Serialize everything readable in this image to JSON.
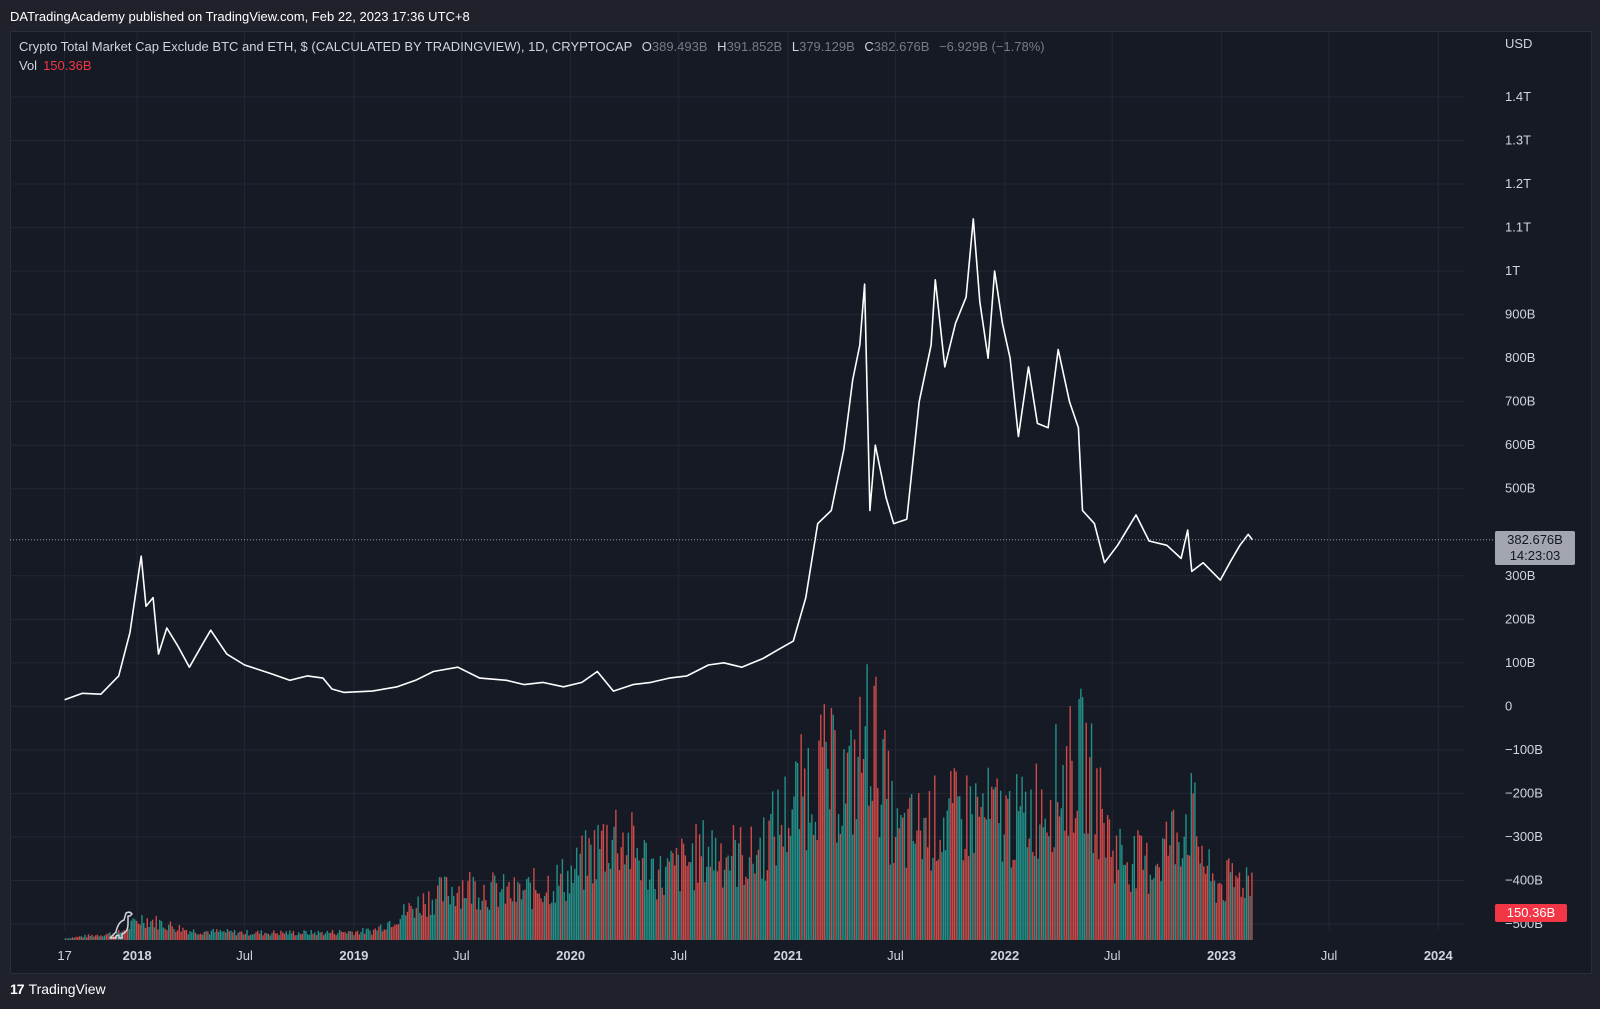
{
  "header": {
    "published": "DATradingAcademy published on TradingView.com, Feb 22, 2023 17:36 UTC+8"
  },
  "legend": {
    "title": "Crypto Total Market Cap Exclude BTC and ETH, $ (CALCULATED BY TRADINGVIEW), 1D, CRYPTOCAP",
    "open_key": "O",
    "open": "389.493B",
    "high_key": "H",
    "high": "391.852B",
    "low_key": "L",
    "low": "379.129B",
    "close_key": "C",
    "close": "382.676B",
    "change": "−6.929B (−1.78%)",
    "vol_label": "Vol",
    "vol_value": "150.36B"
  },
  "price_axis": {
    "currency": "USD"
  },
  "badges": {
    "price": "382.676B",
    "countdown": "14:23:03",
    "volume": "150.36B"
  },
  "footer": {
    "brand": "TradingView",
    "logo_mark": "17"
  },
  "colors": {
    "background": "#161a25",
    "line": "#ffffff",
    "volume_up": "#26a69a",
    "volume_down": "#ef5350",
    "price_badge": "#a3a6af",
    "vol_badge": "#f23645"
  },
  "chart_data": {
    "type": "line",
    "title": "Crypto Total Market Cap Exclude BTC and ETH, $ (CALCULATED BY TRADINGVIEW), 1D, CRYPTOCAP",
    "ylabel": "USD",
    "ylim": [
      -500,
      1400
    ],
    "y_ticks": [
      {
        "v": 1400,
        "label": "1.4T"
      },
      {
        "v": 1300,
        "label": "1.3T"
      },
      {
        "v": 1200,
        "label": "1.2T"
      },
      {
        "v": 1100,
        "label": "1.1T"
      },
      {
        "v": 1000,
        "label": "1T"
      },
      {
        "v": 900,
        "label": "900B"
      },
      {
        "v": 800,
        "label": "800B"
      },
      {
        "v": 700,
        "label": "700B"
      },
      {
        "v": 600,
        "label": "600B"
      },
      {
        "v": 500,
        "label": "500B"
      },
      {
        "v": 300,
        "label": "300B"
      },
      {
        "v": 200,
        "label": "200B"
      },
      {
        "v": 100,
        "label": "100B"
      },
      {
        "v": 0,
        "label": "0"
      },
      {
        "v": -100,
        "label": "−100B"
      },
      {
        "v": -200,
        "label": "−200B"
      },
      {
        "v": -300,
        "label": "−300B"
      },
      {
        "v": -400,
        "label": "−400B"
      },
      {
        "v": -500,
        "label": "−500B"
      }
    ],
    "xlim": [
      "2017-06-01",
      "2024-02-15"
    ],
    "x_ticks": [
      {
        "d": "2017-09-01",
        "label": "17",
        "bold": false
      },
      {
        "d": "2018-01-01",
        "label": "2018",
        "bold": true
      },
      {
        "d": "2018-07-01",
        "label": "Jul",
        "bold": false
      },
      {
        "d": "2019-01-01",
        "label": "2019",
        "bold": true
      },
      {
        "d": "2019-07-01",
        "label": "Jul",
        "bold": false
      },
      {
        "d": "2020-01-01",
        "label": "2020",
        "bold": true
      },
      {
        "d": "2020-07-01",
        "label": "Jul",
        "bold": false
      },
      {
        "d": "2021-01-01",
        "label": "2021",
        "bold": true
      },
      {
        "d": "2021-07-01",
        "label": "Jul",
        "bold": false
      },
      {
        "d": "2022-01-01",
        "label": "2022",
        "bold": true
      },
      {
        "d": "2022-07-01",
        "label": "Jul",
        "bold": false
      },
      {
        "d": "2023-01-01",
        "label": "2023",
        "bold": true
      },
      {
        "d": "2023-07-01",
        "label": "Jul",
        "bold": false
      },
      {
        "d": "2024-01-01",
        "label": "2024",
        "bold": true
      }
    ],
    "last_value": 382.676,
    "unit": "B",
    "series": [
      {
        "values": [
          {
            "x": "2017-09-01",
            "y": 15
          },
          {
            "x": "2017-10-01",
            "y": 30
          },
          {
            "x": "2017-11-01",
            "y": 28
          },
          {
            "x": "2017-12-01",
            "y": 70
          },
          {
            "x": "2017-12-20",
            "y": 170
          },
          {
            "x": "2018-01-04",
            "y": 310
          },
          {
            "x": "2018-01-08",
            "y": 345
          },
          {
            "x": "2018-01-16",
            "y": 230
          },
          {
            "x": "2018-01-28",
            "y": 250
          },
          {
            "x": "2018-02-06",
            "y": 120
          },
          {
            "x": "2018-02-20",
            "y": 180
          },
          {
            "x": "2018-03-10",
            "y": 140
          },
          {
            "x": "2018-03-30",
            "y": 90
          },
          {
            "x": "2018-04-20",
            "y": 140
          },
          {
            "x": "2018-05-05",
            "y": 175
          },
          {
            "x": "2018-06-01",
            "y": 120
          },
          {
            "x": "2018-07-01",
            "y": 95
          },
          {
            "x": "2018-08-15",
            "y": 75
          },
          {
            "x": "2018-09-15",
            "y": 60
          },
          {
            "x": "2018-10-15",
            "y": 70
          },
          {
            "x": "2018-11-10",
            "y": 65
          },
          {
            "x": "2018-11-25",
            "y": 40
          },
          {
            "x": "2018-12-15",
            "y": 32
          },
          {
            "x": "2019-02-01",
            "y": 35
          },
          {
            "x": "2019-03-15",
            "y": 45
          },
          {
            "x": "2019-04-15",
            "y": 60
          },
          {
            "x": "2019-05-15",
            "y": 80
          },
          {
            "x": "2019-06-25",
            "y": 90
          },
          {
            "x": "2019-08-01",
            "y": 65
          },
          {
            "x": "2019-09-15",
            "y": 60
          },
          {
            "x": "2019-10-15",
            "y": 50
          },
          {
            "x": "2019-11-15",
            "y": 55
          },
          {
            "x": "2019-12-20",
            "y": 45
          },
          {
            "x": "2020-01-20",
            "y": 55
          },
          {
            "x": "2020-02-15",
            "y": 80
          },
          {
            "x": "2020-03-13",
            "y": 35
          },
          {
            "x": "2020-04-15",
            "y": 50
          },
          {
            "x": "2020-05-15",
            "y": 55
          },
          {
            "x": "2020-06-15",
            "y": 65
          },
          {
            "x": "2020-07-15",
            "y": 70
          },
          {
            "x": "2020-08-20",
            "y": 95
          },
          {
            "x": "2020-09-15",
            "y": 100
          },
          {
            "x": "2020-10-15",
            "y": 90
          },
          {
            "x": "2020-11-20",
            "y": 110
          },
          {
            "x": "2020-12-15",
            "y": 130
          },
          {
            "x": "2021-01-10",
            "y": 150
          },
          {
            "x": "2021-01-31",
            "y": 250
          },
          {
            "x": "2021-02-20",
            "y": 420
          },
          {
            "x": "2021-03-15",
            "y": 450
          },
          {
            "x": "2021-04-05",
            "y": 590
          },
          {
            "x": "2021-04-20",
            "y": 750
          },
          {
            "x": "2021-05-02",
            "y": 830
          },
          {
            "x": "2021-05-10",
            "y": 970
          },
          {
            "x": "2021-05-19",
            "y": 450
          },
          {
            "x": "2021-05-28",
            "y": 600
          },
          {
            "x": "2021-06-15",
            "y": 480
          },
          {
            "x": "2021-06-28",
            "y": 420
          },
          {
            "x": "2021-07-20",
            "y": 430
          },
          {
            "x": "2021-08-10",
            "y": 700
          },
          {
            "x": "2021-08-30",
            "y": 830
          },
          {
            "x": "2021-09-06",
            "y": 980
          },
          {
            "x": "2021-09-22",
            "y": 780
          },
          {
            "x": "2021-10-10",
            "y": 880
          },
          {
            "x": "2021-10-28",
            "y": 940
          },
          {
            "x": "2021-11-09",
            "y": 1120
          },
          {
            "x": "2021-11-20",
            "y": 930
          },
          {
            "x": "2021-12-04",
            "y": 800
          },
          {
            "x": "2021-12-15",
            "y": 1000
          },
          {
            "x": "2021-12-28",
            "y": 880
          },
          {
            "x": "2022-01-10",
            "y": 800
          },
          {
            "x": "2022-01-24",
            "y": 620
          },
          {
            "x": "2022-02-10",
            "y": 780
          },
          {
            "x": "2022-02-25",
            "y": 650
          },
          {
            "x": "2022-03-15",
            "y": 640
          },
          {
            "x": "2022-04-01",
            "y": 820
          },
          {
            "x": "2022-04-20",
            "y": 700
          },
          {
            "x": "2022-05-05",
            "y": 640
          },
          {
            "x": "2022-05-12",
            "y": 450
          },
          {
            "x": "2022-06-01",
            "y": 420
          },
          {
            "x": "2022-06-18",
            "y": 330
          },
          {
            "x": "2022-07-10",
            "y": 370
          },
          {
            "x": "2022-08-10",
            "y": 440
          },
          {
            "x": "2022-09-01",
            "y": 380
          },
          {
            "x": "2022-10-01",
            "y": 370
          },
          {
            "x": "2022-10-25",
            "y": 340
          },
          {
            "x": "2022-11-05",
            "y": 405
          },
          {
            "x": "2022-11-12",
            "y": 310
          },
          {
            "x": "2022-12-01",
            "y": 330
          },
          {
            "x": "2022-12-30",
            "y": 290
          },
          {
            "x": "2023-01-15",
            "y": 330
          },
          {
            "x": "2023-02-01",
            "y": 370
          },
          {
            "x": "2023-02-15",
            "y": 395
          },
          {
            "x": "2023-02-22",
            "y": 382.676
          }
        ]
      }
    ],
    "volume": {
      "name": "Vol",
      "ylim_note": "volume pane overlay",
      "values": [
        {
          "x": "2017-09-01",
          "y": 1
        },
        {
          "x": "2017-12-01",
          "y": 4
        },
        {
          "x": "2018-01-08",
          "y": 12
        },
        {
          "x": "2018-04-01",
          "y": 5
        },
        {
          "x": "2018-07-01",
          "y": 4
        },
        {
          "x": "2018-11-01",
          "y": 4
        },
        {
          "x": "2019-02-01",
          "y": 5
        },
        {
          "x": "2019-05-01",
          "y": 22
        },
        {
          "x": "2019-07-01",
          "y": 30
        },
        {
          "x": "2019-10-01",
          "y": 25
        },
        {
          "x": "2020-01-01",
          "y": 35
        },
        {
          "x": "2020-03-13",
          "y": 60
        },
        {
          "x": "2020-06-01",
          "y": 35
        },
        {
          "x": "2020-08-20",
          "y": 50
        },
        {
          "x": "2020-11-01",
          "y": 45
        },
        {
          "x": "2021-01-10",
          "y": 75
        },
        {
          "x": "2021-02-20",
          "y": 95
        },
        {
          "x": "2021-04-15",
          "y": 85
        },
        {
          "x": "2021-05-19",
          "y": 120
        },
        {
          "x": "2021-07-01",
          "y": 55
        },
        {
          "x": "2021-09-01",
          "y": 65
        },
        {
          "x": "2021-11-10",
          "y": 70
        },
        {
          "x": "2022-01-24",
          "y": 65
        },
        {
          "x": "2022-05-12",
          "y": 100
        },
        {
          "x": "2022-07-01",
          "y": 50
        },
        {
          "x": "2022-09-01",
          "y": 40
        },
        {
          "x": "2022-11-09",
          "y": 70
        },
        {
          "x": "2022-12-15",
          "y": 30
        },
        {
          "x": "2023-02-22",
          "y": 35
        }
      ]
    }
  }
}
